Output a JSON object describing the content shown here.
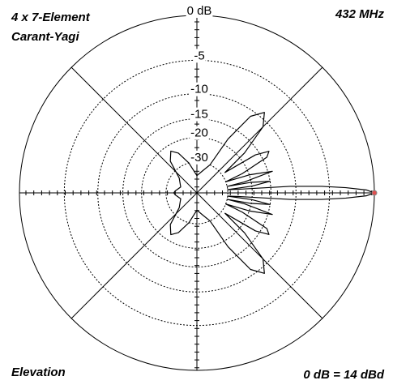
{
  "chart_data": {
    "type": "polar",
    "title_lines": [
      "4 x 7-Element",
      "Carant-Yagi"
    ],
    "frequency": "432 MHz",
    "plane": "Elevation",
    "reference": "0 dB = 14 dBd",
    "radial_scale": "arrl",
    "rlim": [
      -40,
      0
    ],
    "rticks": [
      {
        "value": 0,
        "label": "0 dB"
      },
      -5,
      -10,
      -15,
      -20,
      -30
    ],
    "spokes_deg": [
      0,
      45,
      90,
      135,
      180,
      225,
      270,
      315
    ],
    "line_color": "#000000",
    "marker_color": "#e05050",
    "x": [
      -180,
      -175,
      -160,
      -140,
      -130,
      -122,
      -115,
      -105,
      -90,
      -75,
      -65,
      -60,
      -55,
      -50,
      -45,
      -40,
      -36,
      -33,
      -30,
      -27,
      -23,
      -21,
      -19,
      -16,
      -13,
      -12,
      -11,
      -9,
      -7,
      -6,
      -5,
      -4,
      -3,
      -2,
      -1,
      0,
      1,
      2,
      3,
      4,
      5,
      6,
      7,
      9,
      11,
      12,
      13,
      16,
      19,
      21,
      23,
      27,
      30,
      33,
      36,
      40,
      45,
      50,
      55,
      60,
      65,
      75,
      90,
      105,
      115,
      122,
      130,
      140,
      160,
      175,
      180
    ],
    "values": [
      -35,
      -36,
      -40,
      -35,
      -25,
      -22,
      -24,
      -30,
      -40,
      -35,
      -30,
      -18,
      -11,
      -9,
      -11,
      -18,
      -28,
      -16,
      -13,
      -14,
      -22,
      -30,
      -20,
      -14,
      -22,
      -30,
      -20,
      -15,
      -20,
      -30,
      -25,
      -11,
      -6,
      -3,
      -0.8,
      0,
      -0.8,
      -3,
      -6,
      -11,
      -25,
      -30,
      -20,
      -15,
      -20,
      -30,
      -22,
      -14,
      -20,
      -30,
      -22,
      -14,
      -13,
      -16,
      -28,
      -18,
      -11,
      -9,
      -11,
      -18,
      -30,
      -35,
      -40,
      -30,
      -24,
      -22,
      -25,
      -35,
      -40,
      -36,
      -35
    ],
    "peak_index": 35
  }
}
